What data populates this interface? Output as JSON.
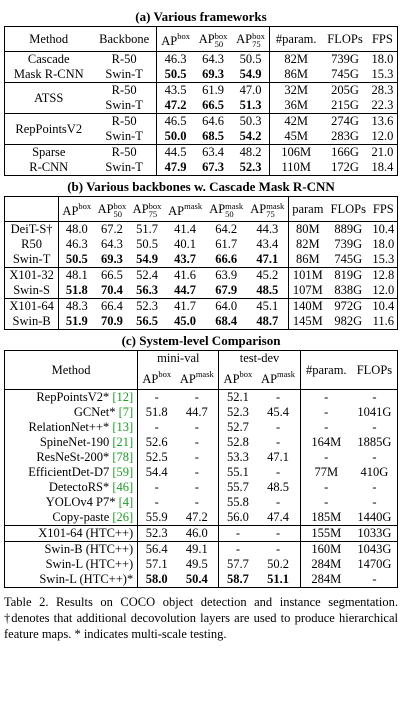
{
  "tables": [
    {
      "title": "(a) Various frameworks",
      "header": [
        "Method",
        "Backbone",
        {
          "base": "AP",
          "sup": "box"
        },
        {
          "base": "AP",
          "sup": "box",
          "sub": "50"
        },
        {
          "base": "AP",
          "sup": "box",
          "sub": "75"
        },
        "#param.",
        "FLOPs",
        "FPS"
      ],
      "bold_columns": [
        1,
        2,
        3
      ],
      "groups": [
        {
          "method": [
            "Cascade",
            "Mask R-CNN"
          ],
          "rows": [
            {
              "cells": [
                "R-50",
                "46.3",
                "64.3",
                "50.5",
                "82M",
                "739G",
                "18.0"
              ]
            },
            {
              "cells": [
                "Swin-T",
                "50.5",
                "69.3",
                "54.9",
                "86M",
                "745G",
                "15.3"
              ],
              "bold": true
            }
          ]
        },
        {
          "method": [
            "ATSS"
          ],
          "rows": [
            {
              "cells": [
                "R-50",
                "43.5",
                "61.9",
                "47.0",
                "32M",
                "205G",
                "28.3"
              ]
            },
            {
              "cells": [
                "Swin-T",
                "47.2",
                "66.5",
                "51.3",
                "36M",
                "215G",
                "22.3"
              ],
              "bold": true
            }
          ]
        },
        {
          "method": [
            "RepPointsV2"
          ],
          "rows": [
            {
              "cells": [
                "R-50",
                "46.5",
                "64.6",
                "50.3",
                "42M",
                "274G",
                "13.6"
              ]
            },
            {
              "cells": [
                "Swin-T",
                "50.0",
                "68.5",
                "54.2",
                "45M",
                "283G",
                "12.0"
              ],
              "bold": true
            }
          ]
        },
        {
          "method": [
            "Sparse",
            "R-CNN"
          ],
          "rows": [
            {
              "cells": [
                "R-50",
                "44.5",
                "63.4",
                "48.2",
                "106M",
                "166G",
                "21.0"
              ]
            },
            {
              "cells": [
                "Swin-T",
                "47.9",
                "67.3",
                "52.3",
                "110M",
                "172G",
                "18.4"
              ],
              "bold": true
            }
          ]
        }
      ]
    },
    {
      "title": "(b) Various backbones w. Cascade Mask R-CNN",
      "header": [
        {
          "base": "AP",
          "sup": "box"
        },
        {
          "base": "AP",
          "sup": "box",
          "sub": "50"
        },
        {
          "base": "AP",
          "sup": "box",
          "sub": "75"
        },
        {
          "base": "AP",
          "sup": "mask"
        },
        {
          "base": "AP",
          "sup": "mask",
          "sub": "50"
        },
        {
          "base": "AP",
          "sup": "mask",
          "sub": "75"
        },
        "param",
        "FLOPs",
        "FPS"
      ],
      "bold_columns": [
        1,
        2,
        3,
        4,
        5,
        6
      ],
      "groups": [
        {
          "rows": [
            {
              "cells": [
                "DeiT-S†",
                "48.0",
                "67.2",
                "51.7",
                "41.4",
                "64.2",
                "44.3",
                "80M",
                "889G",
                "10.4"
              ]
            },
            {
              "cells": [
                "R50",
                "46.3",
                "64.3",
                "50.5",
                "40.1",
                "61.7",
                "43.4",
                "82M",
                "739G",
                "18.0"
              ]
            },
            {
              "cells": [
                "Swin-T",
                "50.5",
                "69.3",
                "54.9",
                "43.7",
                "66.6",
                "47.1",
                "86M",
                "745G",
                "15.3"
              ],
              "bold": true
            }
          ]
        },
        {
          "rows": [
            {
              "cells": [
                "X101-32",
                "48.1",
                "66.5",
                "52.4",
                "41.6",
                "63.9",
                "45.2",
                "101M",
                "819G",
                "12.8"
              ]
            },
            {
              "cells": [
                "Swin-S",
                "51.8",
                "70.4",
                "56.3",
                "44.7",
                "67.9",
                "48.5",
                "107M",
                "838G",
                "12.0"
              ],
              "bold": true
            }
          ]
        },
        {
          "rows": [
            {
              "cells": [
                "X101-64",
                "48.3",
                "66.4",
                "52.3",
                "41.7",
                "64.0",
                "45.1",
                "140M",
                "972G",
                "10.4"
              ]
            },
            {
              "cells": [
                "Swin-B",
                "51.9",
                "70.9",
                "56.5",
                "45.0",
                "68.4",
                "48.7",
                "145M",
                "982G",
                "11.6"
              ],
              "bold": true
            }
          ]
        }
      ]
    },
    {
      "title": "(c) System-level Comparison",
      "header": {
        "method": "Method",
        "groups": [
          {
            "label": "mini-val",
            "cols": [
              {
                "base": "AP",
                "sup": "box"
              },
              {
                "base": "AP",
                "sup": "mask"
              }
            ]
          },
          {
            "label": "test-dev",
            "cols": [
              {
                "base": "AP",
                "sup": "box"
              },
              {
                "base": "AP",
                "sup": "mask"
              }
            ]
          }
        ],
        "param": "#param.",
        "flops": "FLOPs"
      },
      "bold_columns": [
        0,
        1,
        2,
        3
      ],
      "groups": [
        {
          "rows": [
            {
              "method": "RepPointsV2*",
              "cite": "[12]",
              "cells": [
                "-",
                "-",
                "52.1",
                "-",
                "-",
                "-"
              ]
            },
            {
              "method": "GCNet*",
              "cite": "[7]",
              "cells": [
                "51.8",
                "44.7",
                "52.3",
                "45.4",
                "-",
                "1041G"
              ]
            },
            {
              "method": "RelationNet++*",
              "cite": "[13]",
              "cells": [
                "-",
                "-",
                "52.7",
                "-",
                "-",
                "-"
              ]
            },
            {
              "method": "SpineNet-190",
              "cite": "[21]",
              "cells": [
                "52.6",
                "-",
                "52.8",
                "-",
                "164M",
                "1885G"
              ]
            },
            {
              "method": "ResNeSt-200*",
              "cite": "[78]",
              "cells": [
                "52.5",
                "-",
                "53.3",
                "47.1",
                "-",
                "-"
              ]
            },
            {
              "method": "EfficientDet-D7",
              "cite": "[59]",
              "cells": [
                "54.4",
                "-",
                "55.1",
                "-",
                "77M",
                "410G"
              ]
            },
            {
              "method": "DetectoRS*",
              "cite": "[46]",
              "cells": [
                "-",
                "-",
                "55.7",
                "48.5",
                "-",
                "-"
              ]
            },
            {
              "method": "YOLOv4 P7*",
              "cite": "[4]",
              "cells": [
                "-",
                "-",
                "55.8",
                "-",
                "-",
                "-"
              ]
            },
            {
              "method": "Copy-paste",
              "cite": "[26]",
              "cells": [
                "55.9",
                "47.2",
                "56.0",
                "47.4",
                "185M",
                "1440G"
              ]
            }
          ]
        },
        {
          "rows": [
            {
              "method": "X101-64 (HTC++)",
              "cells": [
                "52.3",
                "46.0",
                "-",
                "-",
                "155M",
                "1033G"
              ]
            }
          ]
        },
        {
          "rows": [
            {
              "method": "Swin-B (HTC++)",
              "cells": [
                "56.4",
                "49.1",
                "-",
                "-",
                "160M",
                "1043G"
              ]
            },
            {
              "method": "Swin-L (HTC++)",
              "cells": [
                "57.1",
                "49.5",
                "57.7",
                "50.2",
                "284M",
                "1470G"
              ]
            },
            {
              "method": "Swin-L (HTC++)*",
              "cells": [
                "58.0",
                "50.4",
                "58.7",
                "51.1",
                "284M",
                "-"
              ],
              "bold": true
            }
          ]
        }
      ]
    }
  ],
  "caption": "Table 2. Results on COCO object detection and instance segmentation. †denotes that additional decovolution layers are used to produce hierarchical feature maps. * indicates multi-scale testing."
}
